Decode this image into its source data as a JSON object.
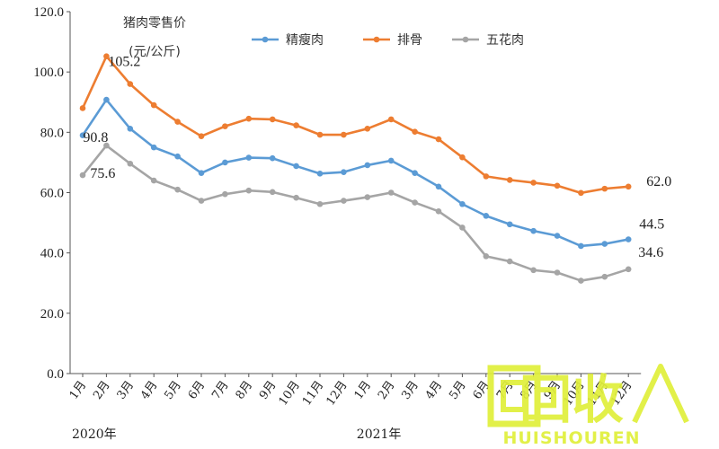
{
  "chart_data": {
    "type": "line",
    "title": "猪肉零售价",
    "subtitle": "(元/公斤)",
    "categories": [
      "1月",
      "2月",
      "3月",
      "4月",
      "5月",
      "6月",
      "7月",
      "8月",
      "9月",
      "10月",
      "11月",
      "12月",
      "1月",
      "2月",
      "3月",
      "4月",
      "5月",
      "6月",
      "7月",
      "8月",
      "9月",
      "10月",
      "11月",
      "12月"
    ],
    "year_labels": [
      {
        "text": "2020年",
        "start_index": 0
      },
      {
        "text": "2021年",
        "start_index": 12
      }
    ],
    "series": [
      {
        "name": "精瘦肉",
        "color": "#5b9bd5",
        "values": [
          79.0,
          90.8,
          81.2,
          75.0,
          72.0,
          66.5,
          70.0,
          71.6,
          71.4,
          68.8,
          66.3,
          66.8,
          69.1,
          70.6,
          66.5,
          62.0,
          56.2,
          52.3,
          49.5,
          47.3,
          45.7,
          42.3,
          43.0,
          44.5
        ]
      },
      {
        "name": "排骨",
        "color": "#ed7d31",
        "values": [
          88.0,
          105.2,
          96.0,
          89.0,
          83.5,
          78.7,
          82.0,
          84.5,
          84.3,
          82.3,
          79.2,
          79.2,
          81.2,
          84.3,
          80.2,
          77.7,
          71.7,
          65.4,
          64.2,
          63.3,
          62.3,
          59.9,
          61.3,
          62.0
        ]
      },
      {
        "name": "五花肉",
        "color": "#a5a5a5",
        "values": [
          65.8,
          75.6,
          69.6,
          64.0,
          61.0,
          57.3,
          59.5,
          60.7,
          60.2,
          58.3,
          56.2,
          57.3,
          58.5,
          60.0,
          56.7,
          53.8,
          48.4,
          38.9,
          37.2,
          34.3,
          33.5,
          30.8,
          32.1,
          34.6
        ]
      }
    ],
    "yticks": [
      "0.0",
      "20.0",
      "40.0",
      "60.0",
      "80.0",
      "100.0",
      "120.0"
    ],
    "ylim": [
      0,
      120
    ],
    "grid": false,
    "legend_position": "top",
    "annotations": [
      {
        "text": "105.2",
        "series": 1,
        "index": 1
      },
      {
        "text": "90.8",
        "series": 0,
        "index": 1
      },
      {
        "text": "75.6",
        "series": 2,
        "index": 1
      },
      {
        "text": "62.0",
        "series": 1,
        "index": 23
      },
      {
        "text": "44.5",
        "series": 0,
        "index": 23
      },
      {
        "text": "34.6",
        "series": 2,
        "index": 23
      }
    ]
  },
  "watermark": {
    "main_text": "回收",
    "sub_text": "HUISHOUREN",
    "color": "#e0ef3a"
  }
}
